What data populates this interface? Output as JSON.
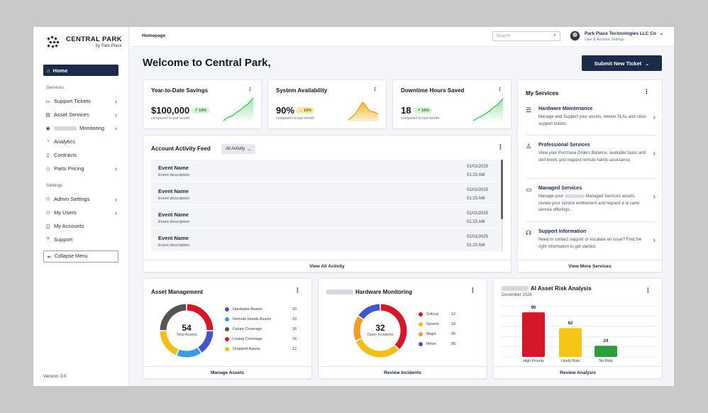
{
  "brand": {
    "name": "CENTRAL PARK",
    "sub": "by Park Place"
  },
  "sidebar": {
    "home": "Home",
    "services_heading": "Services",
    "services": [
      {
        "label": "Support Tickets",
        "icon": "ticket-icon",
        "chevron": true
      },
      {
        "label": "Asset Services",
        "icon": "asset-icon",
        "chevron": true
      },
      {
        "label": "Monitoring",
        "icon": "eye-icon",
        "chevron": true
      },
      {
        "label": "Analytics",
        "icon": "analytics-icon",
        "chevron": false
      },
      {
        "label": "Contracts",
        "icon": "contract-icon",
        "chevron": false
      },
      {
        "label": "Parts Pricing",
        "icon": "tag-icon",
        "chevron": true
      }
    ],
    "settings_heading": "Settings",
    "settings": [
      {
        "label": "Admin Settings",
        "icon": "admin-icon",
        "chevron": true
      },
      {
        "label": "My Users",
        "icon": "users-icon",
        "chevron": true
      },
      {
        "label": "My Accounts",
        "icon": "accounts-icon",
        "chevron": false
      },
      {
        "label": "Support",
        "icon": "help-icon",
        "chevron": false
      }
    ],
    "collapse": "Collapse Menu",
    "version": "Version 3.0"
  },
  "header": {
    "breadcrumb": "Homepage",
    "search_placeholder": "Search",
    "account_name": "Park Place Technologies LLC Co",
    "account_sub": "User & Account Settings"
  },
  "main": {
    "welcome": "Welcome to Central Park,",
    "submit_button": "Submit New Ticket"
  },
  "kpis": [
    {
      "title": "Year-to-Date Savings",
      "value": "$100,000",
      "delta": "10%",
      "trend": "up",
      "compare": "compared to last month",
      "color": "#2fbf4a"
    },
    {
      "title": "System Availability",
      "value": "90%",
      "delta": "10%",
      "trend": "right",
      "compare": "compared to last month",
      "color": "#f2b21b"
    },
    {
      "title": "Downtime Hours Saved",
      "value": "18",
      "delta": "10%",
      "trend": "up",
      "compare": "compared to last month",
      "color": "#2fbf4a"
    }
  ],
  "feed": {
    "title": "Account Activity Feed",
    "filter": "All Activity",
    "events": [
      {
        "name": "Event Name",
        "desc": "Event description",
        "date": "01/01/2025",
        "time": "01:23 AM"
      },
      {
        "name": "Event Name",
        "desc": "Event description",
        "date": "01/01/2025",
        "time": "01:23 AM"
      },
      {
        "name": "Event Name",
        "desc": "Event description",
        "date": "01/01/2025",
        "time": "01:23 AM"
      },
      {
        "name": "Event Name",
        "desc": "Event description",
        "date": "01/01/2025",
        "time": "01:23 AM"
      }
    ],
    "footer": "View All Activity"
  },
  "my_services": {
    "title": "My Services",
    "items": [
      {
        "title": "Hardware Maintenance",
        "desc": "Manage and Support your assets, review SLAs and raise support tickets.",
        "icon": "server-icon"
      },
      {
        "title": "Professional Services",
        "desc": "View your Purchase Orders Balance, available tasks and skill levels and request remote hands assistance.",
        "icon": "person-plus-icon"
      },
      {
        "title": "Managed Services",
        "desc_pre": "Manage your",
        "desc": "Managed Services assets, review your service entitlement and request a la carte service offerings.",
        "icon": "monitor-icon"
      },
      {
        "title": "Support Information",
        "desc": "Need to contact support or escalate an issue? Find the right information to get started.",
        "icon": "headset-icon"
      }
    ],
    "footer": "View More Services"
  },
  "asset_mgmt": {
    "title": "Asset Management",
    "total": "54",
    "total_label": "Total Assets",
    "items": [
      {
        "label": "Hardware Assets",
        "value": 10,
        "color": "#4455c7"
      },
      {
        "label": "Remote Hands Assets",
        "value": 10,
        "color": "#3f9be0"
      },
      {
        "label": "Future Coverage",
        "value": 16,
        "color": "#545454"
      },
      {
        "label": "Losing Coverage",
        "value": 16,
        "color": "#d5172a"
      },
      {
        "label": "Dropped Assets",
        "value": 12,
        "color": "#f2be1a"
      }
    ],
    "footer": "Manage Assets"
  },
  "hw_monitor": {
    "title": "Hardware Monitoring",
    "total": "32",
    "total_label": "Open Incidents",
    "items": [
      {
        "label": "Critical",
        "value": "12",
        "color": "#d5172a"
      },
      {
        "label": "Severe",
        "value": "10",
        "color": "#f2be1a"
      },
      {
        "label": "Major",
        "value": "05",
        "color": "#f39a2a"
      },
      {
        "label": "Minor",
        "value": "05",
        "color": "#4455c7"
      }
    ],
    "footer": "Review Incidents"
  },
  "risk": {
    "title": "AI Asset Risk Analysis",
    "subtitle": "December 2024",
    "footer": "Review Analysis"
  },
  "chart_data": {
    "type": "bar",
    "title": "AI Asset Risk Analysis",
    "categories": [
      "High Priority",
      "Likely Risk",
      "No Risk"
    ],
    "values": [
      96,
      62,
      24
    ],
    "colors": [
      "#d5172a",
      "#f5c518",
      "#2e9e3c"
    ],
    "ylim": [
      0,
      110
    ]
  }
}
